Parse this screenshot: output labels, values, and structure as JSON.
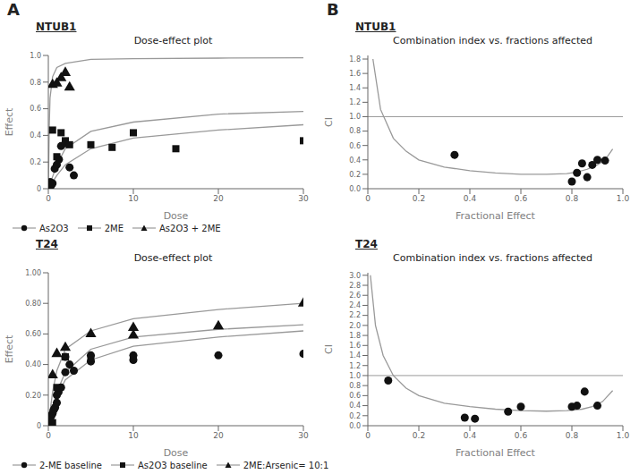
{
  "chart_data": [
    {
      "type": "line",
      "annotations": [
        "A"
      ],
      "subtitle": "NTUB1",
      "title": "Dose-effect plot",
      "x_label": "Dose",
      "y_label": "Effect",
      "xlim": [
        0,
        30
      ],
      "xticks": [
        0,
        10,
        20,
        30
      ],
      "ylim": [
        0,
        1.0
      ],
      "yticks": [
        0,
        0.2,
        0.4,
        0.6,
        0.8,
        {
          "value": 1.0,
          "label": "1.0"
        }
      ],
      "grid": false,
      "legend": "bottom",
      "series": [
        {
          "type": "line",
          "color": "#999999",
          "x": [
            0.01,
            0.05,
            0.1,
            0.2,
            0.5,
            1.0,
            2.0,
            5.0,
            10.0,
            20.0,
            30.0
          ],
          "values": [
            0.001,
            0.003,
            0.007,
            0.018,
            0.05,
            0.1,
            0.18,
            0.3,
            0.38,
            0.44,
            0.48
          ]
        },
        {
          "type": "line",
          "color": "#999999",
          "x": [
            0.01,
            0.05,
            0.1,
            0.2,
            0.5,
            1.0,
            2.0,
            5.0,
            10.0,
            20.0,
            30.0
          ],
          "values": [
            0.001,
            0.004,
            0.01,
            0.03,
            0.09,
            0.18,
            0.3,
            0.43,
            0.5,
            0.56,
            0.58
          ]
        },
        {
          "type": "line",
          "color": "#999999",
          "x": [
            0.01,
            0.05,
            0.1,
            0.2,
            0.5,
            1.0,
            2.0,
            5.0,
            10.0,
            20.0,
            30.0
          ],
          "values": [
            0.05,
            0.2,
            0.45,
            0.68,
            0.84,
            0.91,
            0.94,
            0.97,
            0.975,
            0.98,
            0.982
          ]
        },
        {
          "name": "As2O3",
          "type": "scatter",
          "marker": "circle",
          "color": "#111111",
          "x": [
            0.1,
            0.2,
            0.3,
            0.5,
            0.75,
            1.0,
            1.25,
            1.5,
            2.0,
            2.5,
            3.0
          ],
          "values": [
            0.03,
            0.05,
            0.02,
            0.04,
            0.15,
            0.18,
            0.22,
            0.32,
            0.34,
            0.16,
            0.1
          ]
        },
        {
          "name": "2ME",
          "type": "scatter",
          "marker": "square",
          "color": "#111111",
          "x": [
            0.5,
            1.0,
            1.5,
            2.0,
            2.5,
            5.0,
            7.5,
            10.0,
            15.0,
            30.0
          ],
          "values": [
            0.44,
            0.24,
            0.42,
            0.36,
            0.33,
            0.33,
            0.31,
            0.42,
            0.3,
            0.36
          ]
        },
        {
          "name": "As2O3 + 2ME",
          "type": "scatter",
          "marker": "triangle",
          "color": "#111111",
          "x": [
            0.5,
            1.0,
            1.5,
            2.0,
            2.5
          ],
          "values": [
            0.78,
            0.79,
            0.83,
            0.87,
            0.76
          ]
        }
      ]
    },
    {
      "type": "line",
      "annotations": [
        "B"
      ],
      "subtitle": "NTUB1",
      "title": "Combination index vs. fractions affected",
      "x_label": "Fractional Effect",
      "y_label": "CI",
      "xlim": [
        0,
        1.0
      ],
      "xticks": [
        0,
        0.2,
        0.4,
        0.6,
        0.8,
        {
          "value": 1.0,
          "label": "1.0"
        }
      ],
      "ylim": [
        0,
        1.85
      ],
      "yticks": [
        {
          "value": 0,
          "label": "0.0"
        },
        0.2,
        0.4,
        0.6,
        0.8,
        {
          "value": 1.0,
          "label": "1.0"
        },
        1.2,
        1.4,
        1.6,
        1.8
      ],
      "hline": 1.0,
      "grid": false,
      "series": [
        {
          "type": "line",
          "color": "#999999",
          "x": [
            0.02,
            0.05,
            0.1,
            0.15,
            0.2,
            0.3,
            0.4,
            0.5,
            0.6,
            0.7,
            0.78,
            0.82,
            0.86,
            0.9,
            0.93,
            0.96
          ],
          "values": [
            1.8,
            1.1,
            0.7,
            0.52,
            0.4,
            0.3,
            0.25,
            0.22,
            0.2,
            0.2,
            0.21,
            0.23,
            0.27,
            0.33,
            0.4,
            0.55
          ]
        },
        {
          "type": "scatter",
          "marker": "circle",
          "color": "#111111",
          "x": [
            0.34,
            0.8,
            0.82,
            0.84,
            0.86,
            0.88,
            0.9,
            0.93
          ],
          "values": [
            0.47,
            0.1,
            0.22,
            0.35,
            0.16,
            0.33,
            0.4,
            0.39
          ]
        }
      ]
    },
    {
      "type": "line",
      "subtitle": "T24",
      "title": "Dose-effect plot",
      "x_label": "Dose",
      "y_label": "Effect",
      "xlim": [
        0,
        30
      ],
      "xticks": [
        0,
        10,
        20,
        30
      ],
      "ylim": [
        0,
        1.0
      ],
      "yticks": [
        0,
        {
          "value": 0.2,
          "label": "0.20"
        },
        {
          "value": 0.4,
          "label": "0.40"
        },
        {
          "value": 0.6,
          "label": "0.60"
        },
        {
          "value": 0.8,
          "label": "0.80"
        },
        {
          "value": 1.0,
          "label": "1.00"
        }
      ],
      "grid": false,
      "legend": "bottom",
      "series": [
        {
          "type": "line",
          "color": "#999999",
          "x": [
            0.01,
            0.05,
            0.1,
            0.2,
            0.5,
            1.0,
            2.0,
            5.0,
            10.0,
            20.0,
            30.0
          ],
          "values": [
            0.001,
            0.005,
            0.015,
            0.04,
            0.1,
            0.19,
            0.3,
            0.43,
            0.52,
            0.58,
            0.62
          ]
        },
        {
          "type": "line",
          "color": "#999999",
          "x": [
            0.01,
            0.05,
            0.1,
            0.2,
            0.5,
            1.0,
            2.0,
            5.0,
            10.0,
            20.0,
            30.0
          ],
          "values": [
            0.001,
            0.006,
            0.018,
            0.05,
            0.12,
            0.22,
            0.35,
            0.5,
            0.58,
            0.63,
            0.66
          ]
        },
        {
          "type": "line",
          "color": "#999999",
          "x": [
            0.01,
            0.05,
            0.1,
            0.2,
            0.5,
            1.0,
            2.0,
            5.0,
            10.0,
            20.0,
            30.0
          ],
          "values": [
            0.001,
            0.01,
            0.03,
            0.09,
            0.22,
            0.36,
            0.5,
            0.62,
            0.7,
            0.76,
            0.8
          ]
        },
        {
          "name": "2-ME baseline",
          "type": "scatter",
          "marker": "circle",
          "color": "#111111",
          "x": [
            0.1,
            0.2,
            0.3,
            0.4,
            0.5,
            0.6,
            0.7,
            0.8,
            1.0,
            1.0,
            1.2,
            1.5,
            2.0,
            2.0,
            2.5,
            3.0,
            5.0,
            5.0,
            10.0,
            10.0,
            20.0,
            30.0
          ],
          "values": [
            0.02,
            0.04,
            0.06,
            0.07,
            0.08,
            0.1,
            0.11,
            0.12,
            0.15,
            0.2,
            0.22,
            0.25,
            0.35,
            0.45,
            0.4,
            0.36,
            0.42,
            0.46,
            0.46,
            0.43,
            0.46,
            0.47
          ]
        },
        {
          "name": "As2O3 baseline",
          "type": "scatter",
          "marker": "square",
          "color": "#111111",
          "x": [
            0.5,
            1.0,
            2.0,
            5.0,
            10.0
          ],
          "values": [
            0.02,
            0.25,
            0.45,
            0.44,
            0.44
          ]
        },
        {
          "name": "2ME:Arsenic= 10:1",
          "type": "scatter",
          "marker": "triangle",
          "color": "#111111",
          "x": [
            0.5,
            1.0,
            2.0,
            5.0,
            10.0,
            10.0,
            20.0,
            30.0
          ],
          "values": [
            0.33,
            0.47,
            0.51,
            0.6,
            0.64,
            0.59,
            0.65,
            0.8
          ]
        }
      ]
    },
    {
      "type": "line",
      "subtitle": "T24",
      "title": "Combination index vs. fractions affected",
      "x_label": "Fractional Effect",
      "y_label": "CI",
      "xlim": [
        0,
        1.0
      ],
      "xticks": [
        0,
        0.2,
        0.4,
        0.6,
        0.8,
        {
          "value": 1.0,
          "label": "1.0"
        }
      ],
      "ylim": [
        0,
        3.05
      ],
      "yticks": [
        {
          "value": 0,
          "label": "0.0"
        },
        0.2,
        0.4,
        0.6,
        0.8,
        {
          "value": 1.0,
          "label": "1.0"
        },
        1.2,
        1.4,
        1.6,
        1.8,
        {
          "value": 2.0,
          "label": "2.0"
        },
        2.2,
        2.4,
        2.6,
        2.8,
        {
          "value": 3.0,
          "label": "3.0"
        }
      ],
      "hline": 1.0,
      "grid": false,
      "series": [
        {
          "type": "line",
          "color": "#999999",
          "x": [
            0.01,
            0.03,
            0.06,
            0.1,
            0.15,
            0.2,
            0.3,
            0.4,
            0.5,
            0.6,
            0.7,
            0.78,
            0.84,
            0.88,
            0.92,
            0.96
          ],
          "values": [
            3.0,
            2.0,
            1.4,
            1.0,
            0.75,
            0.6,
            0.45,
            0.38,
            0.33,
            0.3,
            0.29,
            0.3,
            0.33,
            0.38,
            0.48,
            0.7
          ]
        },
        {
          "type": "scatter",
          "marker": "circle",
          "color": "#111111",
          "x": [
            0.08,
            0.38,
            0.42,
            0.55,
            0.6,
            0.8,
            0.82,
            0.85,
            0.9
          ],
          "values": [
            0.9,
            0.16,
            0.14,
            0.28,
            0.38,
            0.38,
            0.4,
            0.68,
            0.4
          ]
        }
      ]
    }
  ]
}
